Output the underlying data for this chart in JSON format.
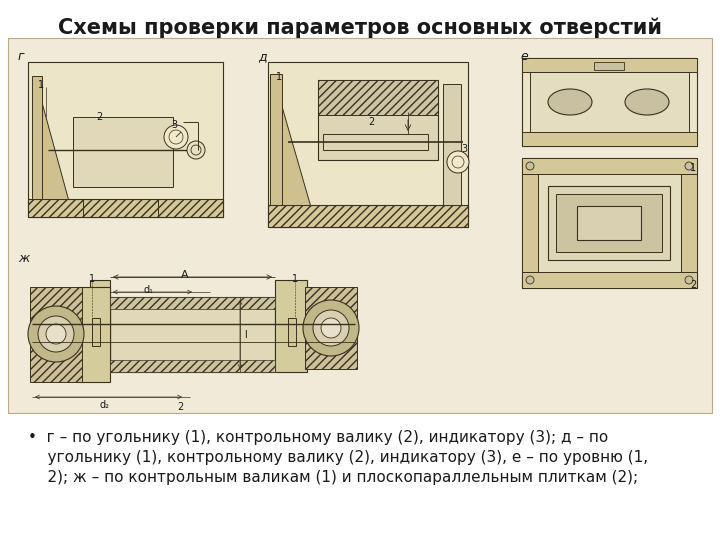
{
  "title": "Схемы проверки параметров основных отверстий",
  "title_fontsize": 15,
  "title_fontweight": "bold",
  "bg_color": "#ffffff",
  "scan_bg": "#f2ead8",
  "line_color": "#3a3020",
  "text_color": "#1a1a1a",
  "bullet_lines": [
    "•  г – по угольнику (1), контрольному валику (2), индикатору (3); д – по",
    "    угольнику (1), контрольному валику (2), индикатору (3), е – по уровню (1,",
    "    2); ж – по контрольным валикам (1) и плоскопараллельным плиткам (2);"
  ],
  "fig_w": 7.2,
  "fig_h": 5.4,
  "dpi": 100
}
